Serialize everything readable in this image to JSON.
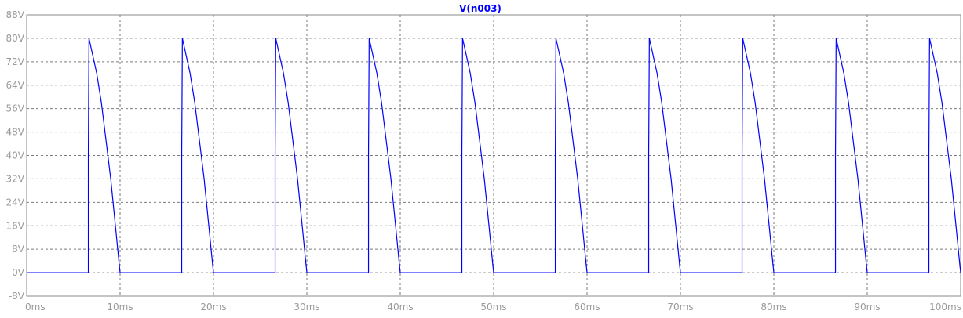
{
  "window": {
    "background": "#ffffff",
    "frame_color": "#8a8a8a",
    "grid_color": "#7a7a7a",
    "label_color": "#9a9a9a"
  },
  "chart_data": {
    "type": "line",
    "title": "",
    "xlabel": "",
    "ylabel": "",
    "xlim": [
      0,
      100
    ],
    "ylim": [
      -8,
      88
    ],
    "x_ticks": [
      0,
      10,
      20,
      30,
      40,
      50,
      60,
      70,
      80,
      90,
      100
    ],
    "x_tick_labels": [
      "0ms",
      "10ms",
      "20ms",
      "30ms",
      "40ms",
      "50ms",
      "60ms",
      "70ms",
      "80ms",
      "90ms",
      "100ms"
    ],
    "y_ticks": [
      -8,
      0,
      8,
      16,
      24,
      32,
      40,
      48,
      56,
      64,
      72,
      80,
      88
    ],
    "y_tick_labels": [
      "-8V",
      "0V",
      "8V",
      "16V",
      "24V",
      "32V",
      "40V",
      "48V",
      "56V",
      "64V",
      "72V",
      "80V",
      "88V"
    ],
    "grid": true,
    "series": [
      {
        "name": "V(n003)",
        "color": "#0000ff",
        "x": [
          0,
          6.6,
          6.6,
          6.67,
          7.5,
          8.0,
          8.5,
          9.0,
          9.5,
          9.9,
          10.0,
          16.6,
          16.6,
          16.67,
          17.5,
          18.0,
          18.5,
          19.0,
          19.5,
          19.9,
          20.0,
          26.6,
          26.6,
          26.67,
          27.5,
          28.0,
          28.5,
          29.0,
          29.5,
          29.9,
          30.0,
          36.6,
          36.6,
          36.67,
          37.5,
          38.0,
          38.5,
          39.0,
          39.5,
          39.9,
          40.0,
          46.6,
          46.6,
          46.67,
          47.5,
          48.0,
          48.5,
          49.0,
          49.5,
          49.9,
          50.0,
          56.6,
          56.6,
          56.67,
          57.5,
          58.0,
          58.5,
          59.0,
          59.5,
          59.9,
          60.0,
          66.6,
          66.6,
          66.67,
          67.5,
          68.0,
          68.5,
          69.0,
          69.5,
          69.9,
          70.0,
          76.6,
          76.6,
          76.67,
          77.5,
          78.0,
          78.5,
          79.0,
          79.5,
          79.9,
          80.0,
          86.6,
          86.6,
          86.67,
          87.5,
          88.0,
          88.5,
          89.0,
          89.5,
          89.9,
          90.0,
          96.6,
          96.6,
          96.67,
          97.5,
          98.0,
          98.5,
          99.0,
          99.5,
          99.9,
          100.0
        ],
        "y": [
          0,
          0,
          40,
          80,
          68,
          58,
          45,
          32,
          16,
          3,
          0,
          0,
          40,
          80,
          68,
          58,
          45,
          32,
          16,
          3,
          0,
          0,
          40,
          80,
          68,
          58,
          45,
          32,
          16,
          3,
          0,
          0,
          40,
          80,
          68,
          58,
          45,
          32,
          16,
          3,
          0,
          0,
          40,
          80,
          68,
          58,
          45,
          32,
          16,
          3,
          0,
          0,
          40,
          80,
          68,
          58,
          45,
          32,
          16,
          3,
          0,
          0,
          40,
          80,
          68,
          58,
          45,
          32,
          16,
          3,
          0,
          0,
          40,
          80,
          68,
          58,
          45,
          32,
          16,
          3,
          0,
          0,
          40,
          80,
          68,
          58,
          45,
          32,
          16,
          3,
          0,
          0,
          40,
          80,
          68,
          58,
          45,
          32,
          16,
          3,
          0
        ]
      }
    ]
  }
}
